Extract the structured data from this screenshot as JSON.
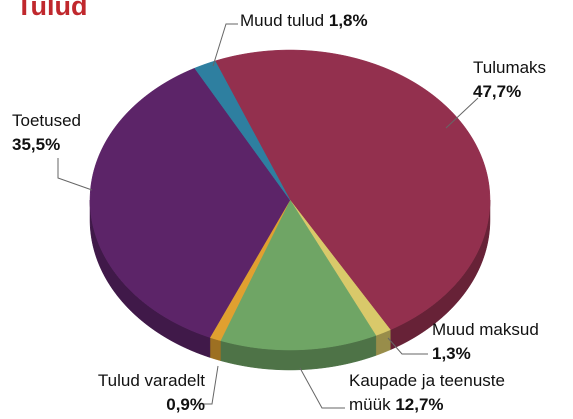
{
  "chart_data": {
    "type": "pie",
    "title": "Tulud",
    "categories": [
      "Tulumaks",
      "Muud maksud",
      "Kaupade ja teenuste müük",
      "Tulud varadelt",
      "Toetused",
      "Muud tulud"
    ],
    "values": [
      47.7,
      1.3,
      12.7,
      0.9,
      35.5,
      1.8
    ],
    "value_labels": [
      "47,7%",
      "1,3%",
      "12,7%",
      "0,9%",
      "35,5%",
      "1,8%"
    ],
    "colors": [
      "#93304e",
      "#d9c96a",
      "#6fa565",
      "#e0a030",
      "#5c2468",
      "#2e7fa0"
    ]
  }
}
